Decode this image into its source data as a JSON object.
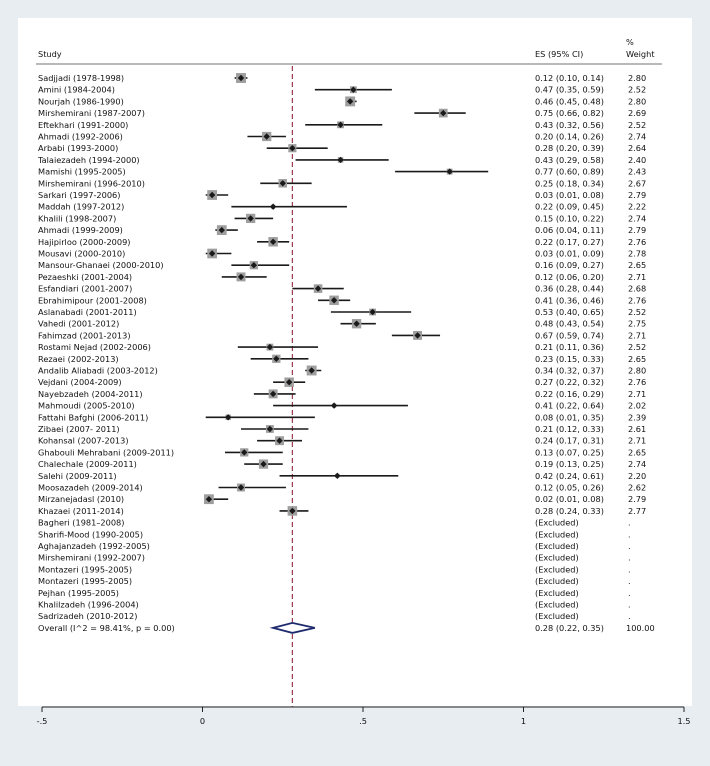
{
  "chart_data": {
    "type": "forest",
    "headers": {
      "study": "Study",
      "es": "ES (95% CI)",
      "weight_top": "%",
      "weight_bottom": "Weight"
    },
    "studies": [
      {
        "label": "Sadjjadi (1978-1998)",
        "es": 0.12,
        "lo": 0.1,
        "hi": 0.14,
        "es_text": "0.12 (0.10, 0.14)",
        "weight": "2.80"
      },
      {
        "label": "Amini (1984-2004)",
        "es": 0.47,
        "lo": 0.35,
        "hi": 0.59,
        "es_text": "0.47 (0.35, 0.59)",
        "weight": "2.52"
      },
      {
        "label": "Nourjah (1986-1990)",
        "es": 0.46,
        "lo": 0.45,
        "hi": 0.48,
        "es_text": "0.46 (0.45, 0.48)",
        "weight": "2.80"
      },
      {
        "label": "Mirshemirani (1987-2007)",
        "es": 0.75,
        "lo": 0.66,
        "hi": 0.82,
        "es_text": "0.75 (0.66, 0.82)",
        "weight": "2.69"
      },
      {
        "label": "Eftekhari (1991-2000)",
        "es": 0.43,
        "lo": 0.32,
        "hi": 0.56,
        "es_text": "0.43 (0.32, 0.56)",
        "weight": "2.52"
      },
      {
        "label": "Ahmadi (1992-2006)",
        "es": 0.2,
        "lo": 0.14,
        "hi": 0.26,
        "es_text": "0.20 (0.14, 0.26)",
        "weight": "2.74"
      },
      {
        "label": "Arbabi (1993-2000)",
        "es": 0.28,
        "lo": 0.2,
        "hi": 0.39,
        "es_text": "0.28 (0.20, 0.39)",
        "weight": "2.64"
      },
      {
        "label": "Talaiezadeh (1994-2000)",
        "es": 0.43,
        "lo": 0.29,
        "hi": 0.58,
        "es_text": "0.43 (0.29, 0.58)",
        "weight": "2.40"
      },
      {
        "label": "Mamishi (1995-2005)",
        "es": 0.77,
        "lo": 0.6,
        "hi": 0.89,
        "es_text": "0.77 (0.60, 0.89)",
        "weight": "2.43"
      },
      {
        "label": "Mirshemirani (1996-2010)",
        "es": 0.25,
        "lo": 0.18,
        "hi": 0.34,
        "es_text": "0.25 (0.18, 0.34)",
        "weight": "2.67"
      },
      {
        "label": "Sarkari (1997-2006)",
        "es": 0.03,
        "lo": 0.01,
        "hi": 0.08,
        "es_text": "0.03 (0.01, 0.08)",
        "weight": "2.79"
      },
      {
        "label": "Maddah (1997-2012)",
        "es": 0.22,
        "lo": 0.09,
        "hi": 0.45,
        "es_text": "0.22 (0.09, 0.45)",
        "weight": "2.22"
      },
      {
        "label": "Khalili (1998-2007)",
        "es": 0.15,
        "lo": 0.1,
        "hi": 0.22,
        "es_text": "0.15 (0.10, 0.22)",
        "weight": "2.74"
      },
      {
        "label": "Ahmadi (1999-2009)",
        "es": 0.06,
        "lo": 0.04,
        "hi": 0.11,
        "es_text": "0.06 (0.04, 0.11)",
        "weight": "2.79"
      },
      {
        "label": "Hajipirloo (2000-2009)",
        "es": 0.22,
        "lo": 0.17,
        "hi": 0.27,
        "es_text": "0.22 (0.17, 0.27)",
        "weight": "2.76"
      },
      {
        "label": "Mousavi (2000-2010)",
        "es": 0.03,
        "lo": 0.01,
        "hi": 0.09,
        "es_text": "0.03 (0.01, 0.09)",
        "weight": "2.78"
      },
      {
        "label": "Mansour-Ghanaei (2000-2010)",
        "es": 0.16,
        "lo": 0.09,
        "hi": 0.27,
        "es_text": "0.16 (0.09, 0.27)",
        "weight": "2.65"
      },
      {
        "label": "Pezaeshki (2001-2004)",
        "es": 0.12,
        "lo": 0.06,
        "hi": 0.2,
        "es_text": "0.12 (0.06, 0.20)",
        "weight": "2.71"
      },
      {
        "label": "Esfandiari (2001-2007)",
        "es": 0.36,
        "lo": 0.28,
        "hi": 0.44,
        "es_text": "0.36 (0.28, 0.44)",
        "weight": "2.68"
      },
      {
        "label": "Ebrahimipour (2001-2008)",
        "es": 0.41,
        "lo": 0.36,
        "hi": 0.46,
        "es_text": "0.41 (0.36, 0.46)",
        "weight": "2.76"
      },
      {
        "label": "Aslanabadi (2001-2011)",
        "es": 0.53,
        "lo": 0.4,
        "hi": 0.65,
        "es_text": "0.53 (0.40, 0.65)",
        "weight": "2.52"
      },
      {
        "label": "Vahedi (2001-2012)",
        "es": 0.48,
        "lo": 0.43,
        "hi": 0.54,
        "es_text": "0.48 (0.43, 0.54)",
        "weight": "2.75"
      },
      {
        "label": "Fahimzad (2001-2013)",
        "es": 0.67,
        "lo": 0.59,
        "hi": 0.74,
        "es_text": "0.67 (0.59, 0.74)",
        "weight": "2.71"
      },
      {
        "label": "Rostami Nejad (2002-2006)",
        "es": 0.21,
        "lo": 0.11,
        "hi": 0.36,
        "es_text": "0.21 (0.11, 0.36)",
        "weight": "2.52"
      },
      {
        "label": "Rezaei (2002-2013)",
        "es": 0.23,
        "lo": 0.15,
        "hi": 0.33,
        "es_text": "0.23 (0.15, 0.33)",
        "weight": "2.65"
      },
      {
        "label": "Andalib Aliabadi (2003-2012)",
        "es": 0.34,
        "lo": 0.32,
        "hi": 0.37,
        "es_text": "0.34 (0.32, 0.37)",
        "weight": "2.80"
      },
      {
        "label": "Vejdani (2004-2009)",
        "es": 0.27,
        "lo": 0.22,
        "hi": 0.32,
        "es_text": "0.27 (0.22, 0.32)",
        "weight": "2.76"
      },
      {
        "label": "Nayebzadeh (2004-2011)",
        "es": 0.22,
        "lo": 0.16,
        "hi": 0.29,
        "es_text": "0.22 (0.16, 0.29)",
        "weight": "2.71"
      },
      {
        "label": "Mahmoudi (2005-2010)",
        "es": 0.41,
        "lo": 0.22,
        "hi": 0.64,
        "es_text": "0.41 (0.22, 0.64)",
        "weight": "2.02"
      },
      {
        "label": "Fattahi Bafghi (2006-2011)",
        "es": 0.08,
        "lo": 0.01,
        "hi": 0.35,
        "es_text": "0.08 (0.01, 0.35)",
        "weight": "2.39"
      },
      {
        "label": "Zibaei (2007- 2011)",
        "es": 0.21,
        "lo": 0.12,
        "hi": 0.33,
        "es_text": "0.21 (0.12, 0.33)",
        "weight": "2.61"
      },
      {
        "label": "Kohansal (2007-2013)",
        "es": 0.24,
        "lo": 0.17,
        "hi": 0.31,
        "es_text": "0.24 (0.17, 0.31)",
        "weight": "2.71"
      },
      {
        "label": "Ghabouli Mehrabani (2009-2011)",
        "es": 0.13,
        "lo": 0.07,
        "hi": 0.25,
        "es_text": "0.13 (0.07, 0.25)",
        "weight": "2.65"
      },
      {
        "label": "Chalechale (2009-2011)",
        "es": 0.19,
        "lo": 0.13,
        "hi": 0.25,
        "es_text": "0.19 (0.13, 0.25)",
        "weight": "2.74"
      },
      {
        "label": "Salehi (2009-2011)",
        "es": 0.42,
        "lo": 0.24,
        "hi": 0.61,
        "es_text": "0.42 (0.24, 0.61)",
        "weight": "2.20"
      },
      {
        "label": "Moosazadeh (2009-2014)",
        "es": 0.12,
        "lo": 0.05,
        "hi": 0.26,
        "es_text": "0.12 (0.05, 0.26)",
        "weight": "2.62"
      },
      {
        "label": "Mirzanejadasl (2010)",
        "es": 0.02,
        "lo": 0.01,
        "hi": 0.08,
        "es_text": "0.02 (0.01, 0.08)",
        "weight": "2.79"
      },
      {
        "label": "Khazaei (2011-2014)",
        "es": 0.28,
        "lo": 0.24,
        "hi": 0.33,
        "es_text": "0.28 (0.24, 0.33)",
        "weight": "2.77"
      },
      {
        "label": "Bagheri (1981–2008)",
        "es": null,
        "es_text": "(Excluded)",
        "weight": "."
      },
      {
        "label": "Sharifi-Mood (1990-2005)",
        "es": null,
        "es_text": "(Excluded)",
        "weight": "."
      },
      {
        "label": "Aghajanzadeh (1992-2005)",
        "es": null,
        "es_text": "(Excluded)",
        "weight": "."
      },
      {
        "label": "Mirshemirani (1992-2007)",
        "es": null,
        "es_text": "(Excluded)",
        "weight": "."
      },
      {
        "label": "Montazeri  (1995-2005)",
        "es": null,
        "es_text": "(Excluded)",
        "weight": "."
      },
      {
        "label": "Montazeri  (1995-2005)",
        "es": null,
        "es_text": "(Excluded)",
        "weight": "."
      },
      {
        "label": "Pejhan (1995-2005)",
        "es": null,
        "es_text": "(Excluded)",
        "weight": "."
      },
      {
        "label": "Khalilzadeh (1996-2004)",
        "es": null,
        "es_text": "(Excluded)",
        "weight": "."
      },
      {
        "label": "Sadrizadeh (2010-2012)",
        "es": null,
        "es_text": "(Excluded)",
        "weight": "."
      }
    ],
    "overall": {
      "label": "Overall  (I^2 = 98.41%, p = 0.00)",
      "es": 0.28,
      "lo": 0.22,
      "hi": 0.35,
      "es_text": "0.28 (0.22, 0.35)",
      "weight": "100.00"
    },
    "x_axis": {
      "ticks": [
        -0.5,
        0,
        0.5,
        1,
        1.5
      ],
      "tick_labels": [
        "-.5",
        "0",
        ".5",
        "1",
        "1.5"
      ],
      "range": [
        -0.5,
        1.5
      ]
    },
    "null_line": 0.28,
    "colors": {
      "background": "#e8edf1",
      "panel": "#ffffff",
      "ref_line": "#9a3d4e",
      "marker": "#1a1a1a",
      "weight_box": "#9e9e9e",
      "diamond": "#1f2a6e"
    }
  }
}
